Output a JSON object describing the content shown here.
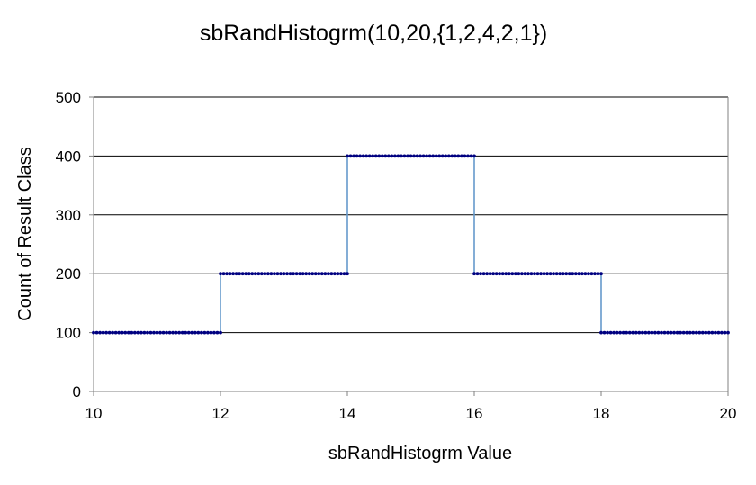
{
  "chart_data": {
    "type": "line",
    "title": "sbRandHistogrm(10,20,{1,2,4,2,1})",
    "xlabel": "sbRandHistogrm Value",
    "ylabel": "Count of Result Class",
    "xlim": [
      10,
      20
    ],
    "ylim": [
      0,
      500
    ],
    "x_ticks": [
      "10",
      "12",
      "14",
      "16",
      "18",
      "20"
    ],
    "y_ticks": [
      "0",
      "100",
      "200",
      "300",
      "400",
      "500"
    ],
    "grid": true,
    "legend": "none",
    "series": [
      {
        "segments": [
          {
            "x_start": 10,
            "x_end": 12,
            "y": 100
          },
          {
            "x_start": 12,
            "x_end": 14,
            "y": 200
          },
          {
            "x_start": 14,
            "x_end": 16,
            "y": 400
          },
          {
            "x_start": 16,
            "x_end": 18,
            "y": 200
          },
          {
            "x_start": 18,
            "x_end": 20,
            "y": 100
          }
        ],
        "points_per_unit": 20
      }
    ],
    "colors": {
      "line": "#6699cc",
      "markers": "#000080",
      "grid": "#000000",
      "axis": "#808080"
    }
  }
}
